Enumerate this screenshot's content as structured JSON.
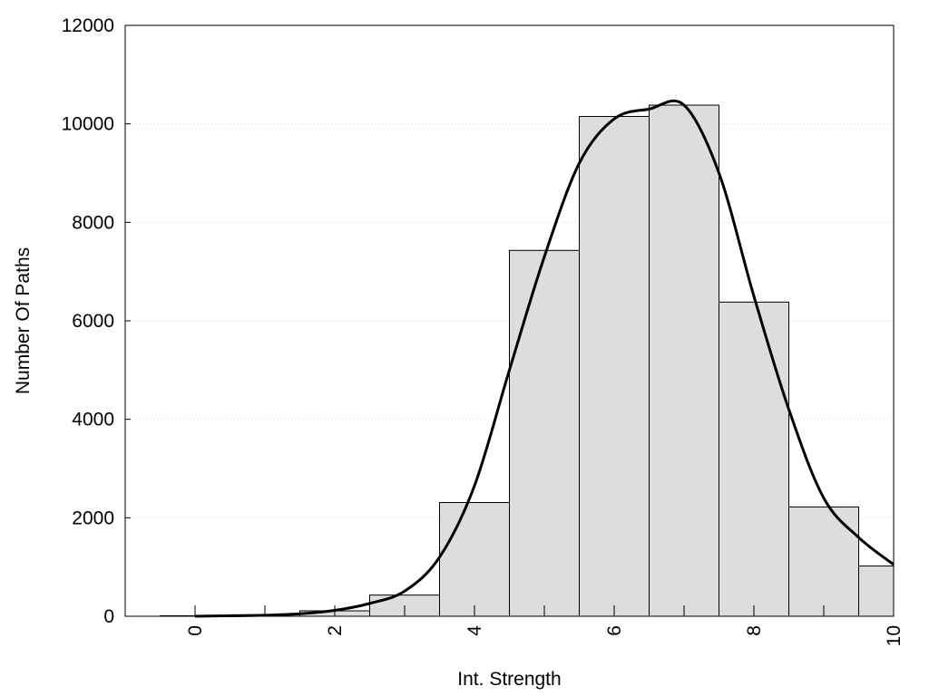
{
  "chart_data": {
    "type": "bar",
    "title": "",
    "xlabel": "Int. Strength",
    "ylabel": "Number Of Paths",
    "xlim": [
      -1,
      10
    ],
    "ylim": [
      0,
      12000
    ],
    "x_ticks": [
      0,
      2,
      4,
      6,
      8,
      10
    ],
    "y_ticks": [
      0,
      2000,
      4000,
      6000,
      8000,
      10000,
      12000
    ],
    "grid": "horizontal-dotted",
    "bin_width": 1,
    "bars": {
      "x": [
        0,
        1,
        2,
        3,
        4,
        5,
        6,
        7,
        8,
        9,
        10
      ],
      "values": [
        10,
        30,
        110,
        430,
        2310,
        7430,
        10150,
        10380,
        6380,
        2220,
        1020
      ]
    },
    "curve": {
      "x": [
        0,
        0.5,
        1,
        1.5,
        2,
        2.5,
        3,
        3.5,
        4,
        4.5,
        5,
        5.5,
        6,
        6.5,
        7,
        7.5,
        8,
        8.5,
        9,
        9.5,
        10
      ],
      "values": [
        0,
        10,
        20,
        50,
        120,
        260,
        510,
        1200,
        2650,
        5000,
        7300,
        9200,
        10100,
        10300,
        10380,
        9000,
        6500,
        4200,
        2400,
        1600,
        1050
      ]
    },
    "colors": {
      "bar_fill": "#dddddd",
      "bar_stroke": "#000000",
      "curve": "#000000",
      "grid": "#cccccc"
    }
  }
}
